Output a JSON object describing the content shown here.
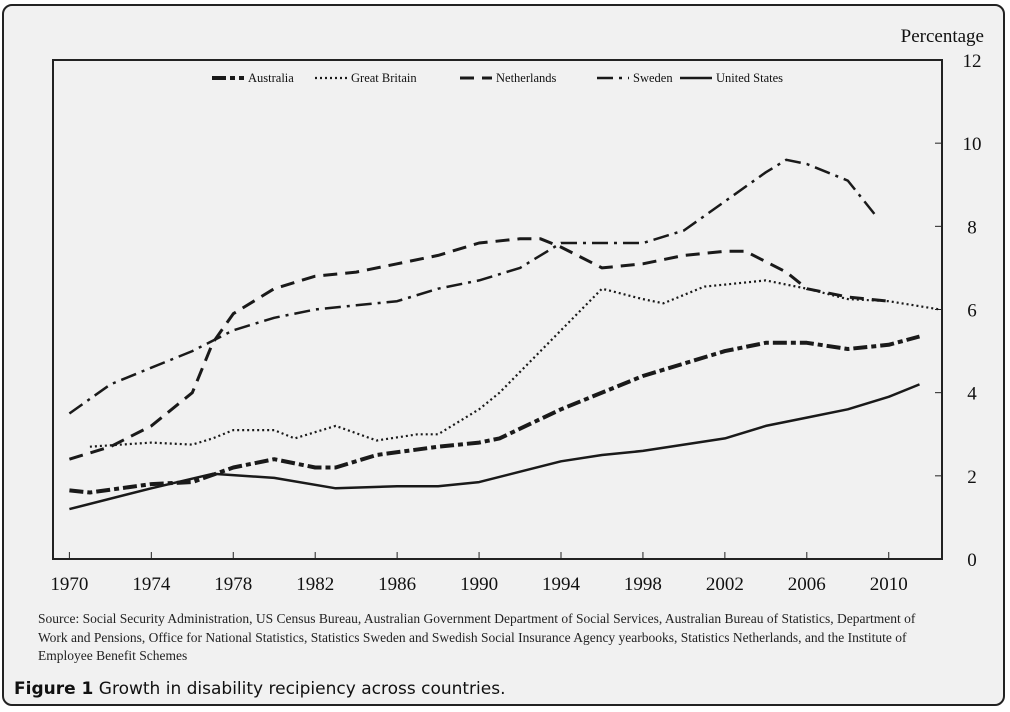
{
  "chart_data": {
    "type": "line",
    "ylabel": "Percentage",
    "ylim": [
      0,
      12
    ],
    "yticks": [
      0,
      2,
      4,
      6,
      8,
      10,
      12
    ],
    "xlim": [
      1969.2,
      2012.6
    ],
    "xticks": [
      1970,
      1974,
      1978,
      1982,
      1986,
      1990,
      1994,
      1998,
      2002,
      2006,
      2010
    ],
    "grid": false,
    "legend": "top",
    "series": [
      {
        "name": "Australia",
        "style": "dash-dot-dot",
        "x": [
          1970,
          1971,
          1974,
          1976,
          1978,
          1980,
          1982,
          1983,
          1985,
          1988,
          1990,
          1991,
          1994,
          1998,
          2002,
          2004,
          2006,
          2008,
          2010,
          2011.5
        ],
        "y": [
          1.65,
          1.6,
          1.8,
          1.85,
          2.2,
          2.4,
          2.2,
          2.2,
          2.5,
          2.7,
          2.8,
          2.9,
          3.6,
          4.4,
          5.0,
          5.2,
          5.2,
          5.05,
          5.15,
          5.35
        ]
      },
      {
        "name": "Great Britain",
        "style": "dotted",
        "x": [
          1971,
          1974,
          1976,
          1977,
          1978,
          1980,
          1981,
          1983,
          1985,
          1987,
          1988,
          1990,
          1991,
          1994,
          1996,
          1998,
          1999,
          2001,
          2002,
          2004,
          2006,
          2008,
          2010,
          2012.5
        ],
        "y": [
          2.7,
          2.8,
          2.75,
          2.9,
          3.1,
          3.1,
          2.9,
          3.2,
          2.85,
          3.0,
          3.0,
          3.6,
          4.0,
          5.5,
          6.5,
          6.25,
          6.15,
          6.55,
          6.6,
          6.7,
          6.5,
          6.25,
          6.2,
          6.0
        ]
      },
      {
        "name": "Netherlands",
        "style": "dashed",
        "x": [
          1970,
          1972,
          1974,
          1976,
          1977,
          1978,
          1980,
          1982,
          1984,
          1986,
          1988,
          1990,
          1992,
          1993,
          1994,
          1996,
          1998,
          2000,
          2002,
          2003,
          2005,
          2006,
          2008,
          2010
        ],
        "y": [
          2.4,
          2.7,
          3.2,
          4.0,
          5.2,
          5.9,
          6.5,
          6.8,
          6.9,
          7.1,
          7.3,
          7.6,
          7.7,
          7.7,
          7.5,
          7.0,
          7.1,
          7.3,
          7.4,
          7.4,
          6.9,
          6.5,
          6.3,
          6.2
        ]
      },
      {
        "name": "Sweden",
        "style": "dash-dot",
        "x": [
          1970,
          1972,
          1974,
          1976,
          1978,
          1980,
          1982,
          1984,
          1986,
          1988,
          1990,
          1992,
          1994,
          1996,
          1998,
          2000,
          2002,
          2004,
          2005,
          2006,
          2008,
          2009.3
        ],
        "y": [
          3.5,
          4.2,
          4.6,
          5.0,
          5.5,
          5.8,
          6.0,
          6.1,
          6.2,
          6.5,
          6.7,
          7.0,
          7.6,
          7.6,
          7.6,
          7.9,
          8.6,
          9.3,
          9.6,
          9.5,
          9.1,
          8.3
        ]
      },
      {
        "name": "United States",
        "style": "solid",
        "x": [
          1970,
          1974,
          1977,
          1980,
          1983,
          1986,
          1988,
          1990,
          1992,
          1994,
          1996,
          1998,
          2000,
          2002,
          2004,
          2006,
          2008,
          2010,
          2011.5
        ],
        "y": [
          1.2,
          1.7,
          2.05,
          1.95,
          1.7,
          1.75,
          1.75,
          1.85,
          2.1,
          2.35,
          2.5,
          2.6,
          2.75,
          2.9,
          3.2,
          3.4,
          3.6,
          3.9,
          4.2
        ]
      }
    ]
  },
  "source": "Source: Social Security Administration, US Census Bureau, Australian Government Department of Social Services, Australian Bureau of Statistics, Department of Work and Pensions, Office for National Statistics, Statistics  Sweden and Swedish Social Insurance Agency yearbooks, Statistics Netherlands, and the Institute of Employee Benefit Schemes",
  "caption": {
    "label": "Figure 1",
    "text": " Growth in disability recipiency across countries."
  }
}
